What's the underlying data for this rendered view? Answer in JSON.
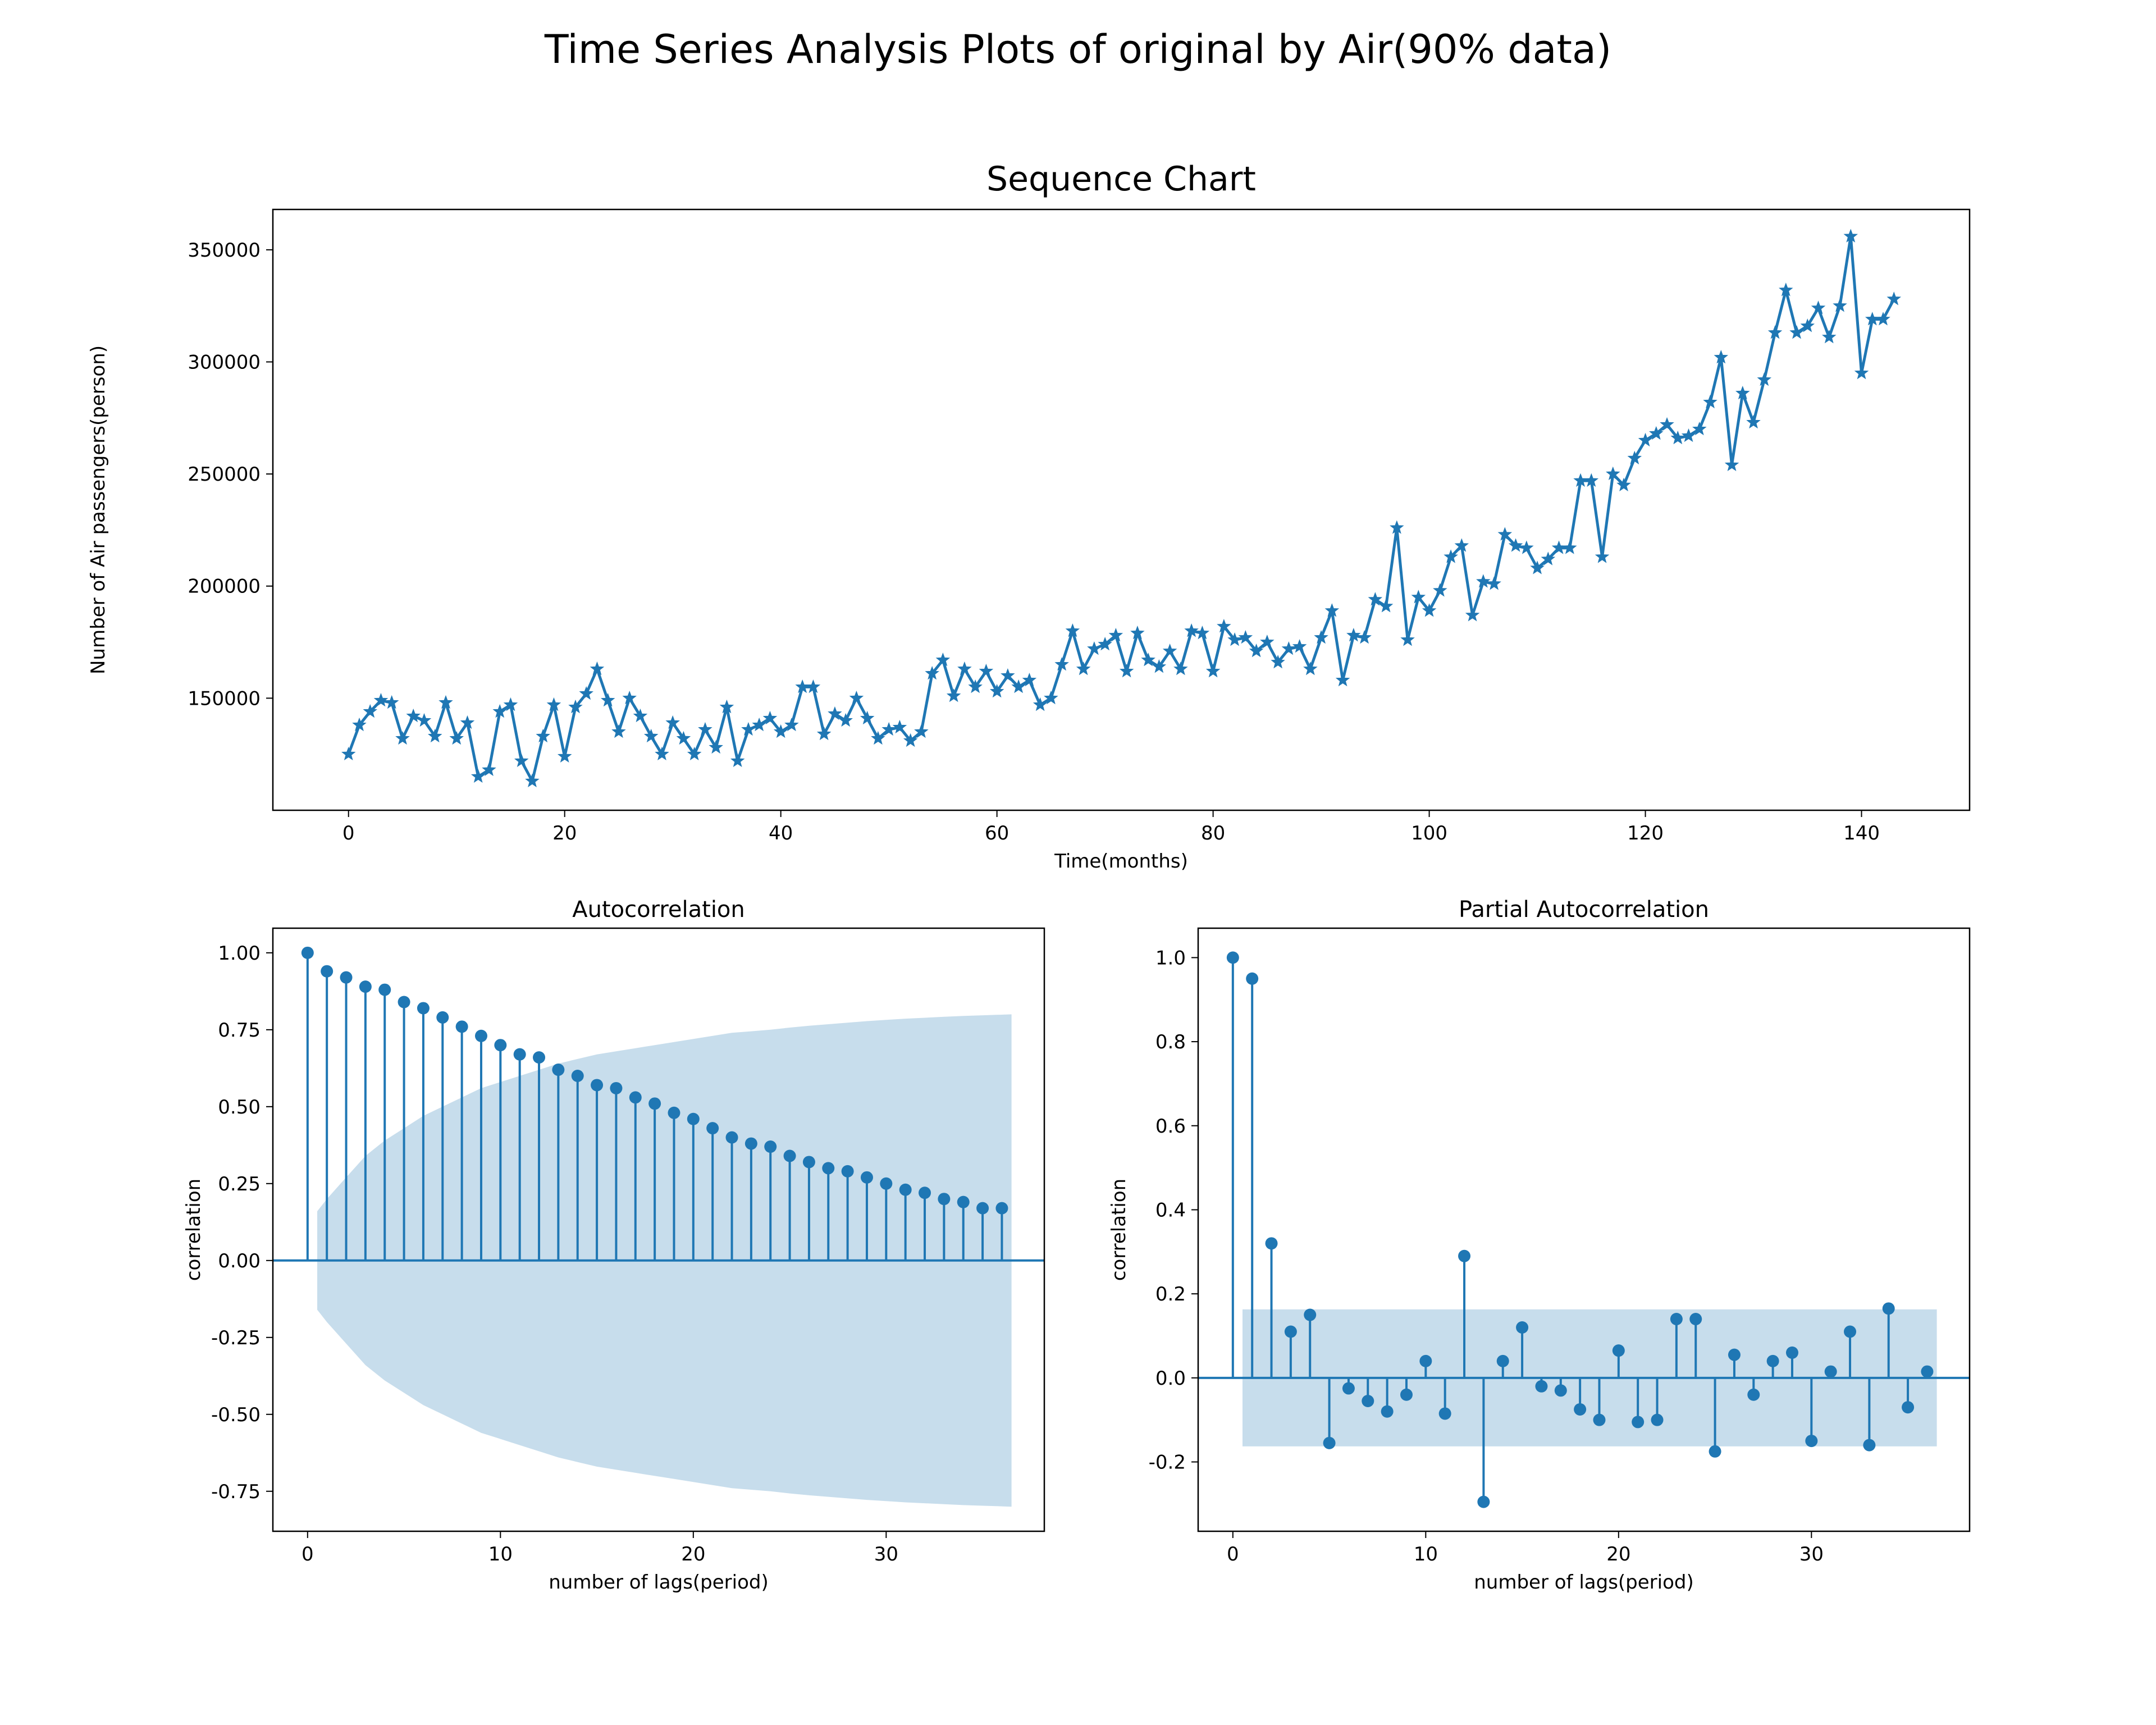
{
  "figure": {
    "suptitle": "Time Series Analysis Plots of original by Air(90% data)",
    "colors": {
      "line": "#1f77b4",
      "band": "#1f77b4",
      "axes": "#000000",
      "background": "#ffffff"
    }
  },
  "chart_data": [
    {
      "type": "line",
      "title": "Sequence Chart",
      "xlabel": "Time(months)",
      "ylabel": "Number of Air passengers(person)",
      "marker": "star",
      "xlim": [
        -7,
        150
      ],
      "ylim": [
        100000,
        368000
      ],
      "xticks": [
        0,
        20,
        40,
        60,
        80,
        100,
        120,
        140
      ],
      "yticks": [
        150000,
        200000,
        250000,
        300000,
        350000
      ],
      "x_start": 0,
      "values": [
        125000,
        138000,
        144000,
        149000,
        148000,
        132000,
        142000,
        140000,
        133000,
        148000,
        132000,
        139000,
        115000,
        118000,
        144000,
        147000,
        122000,
        113000,
        133000,
        147000,
        124000,
        146000,
        152000,
        163000,
        149000,
        135000,
        150000,
        142000,
        133000,
        125000,
        139000,
        132000,
        125000,
        136000,
        128000,
        146000,
        122000,
        136000,
        138000,
        141000,
        135000,
        138000,
        155000,
        155000,
        134000,
        143000,
        140000,
        150000,
        141000,
        132000,
        136000,
        137000,
        131000,
        135000,
        161000,
        167000,
        151000,
        163000,
        155000,
        162000,
        153000,
        160000,
        155000,
        158000,
        147000,
        150000,
        165000,
        180000,
        163000,
        172000,
        174000,
        178000,
        162000,
        179000,
        167000,
        164000,
        171000,
        163000,
        180000,
        179000,
        162000,
        182000,
        176000,
        177000,
        171000,
        175000,
        166000,
        172000,
        173000,
        163000,
        177000,
        189000,
        158000,
        178000,
        177000,
        194000,
        191000,
        226000,
        176000,
        195000,
        189000,
        198000,
        213000,
        218000,
        187000,
        202000,
        201000,
        223000,
        218000,
        217000,
        208000,
        212000,
        217000,
        217000,
        247000,
        247000,
        213000,
        250000,
        245000,
        257000,
        265000,
        268000,
        272000,
        266000,
        267000,
        270000,
        282000,
        302000,
        254000,
        286000,
        273000,
        292000,
        313000,
        332000,
        313000,
        316000,
        324000,
        311000,
        325000,
        356000,
        295000,
        319000,
        319000,
        328000
      ]
    },
    {
      "type": "stem",
      "title": "Autocorrelation",
      "xlabel": "number of lags(period)",
      "ylabel": "correlation",
      "xlim": [
        -1.8,
        38.2
      ],
      "ylim": [
        -0.88,
        1.08
      ],
      "xticks": [
        0,
        10,
        20,
        30
      ],
      "yticks": [
        -0.75,
        -0.5,
        -0.25,
        0.0,
        0.25,
        0.5,
        0.75,
        1.0
      ],
      "ytick_labels": [
        "-0.75",
        "-0.50",
        "-0.25",
        "0.00",
        "0.25",
        "0.50",
        "0.75",
        "1.00"
      ],
      "lags": [
        0,
        1,
        2,
        3,
        4,
        5,
        6,
        7,
        8,
        9,
        10,
        11,
        12,
        13,
        14,
        15,
        16,
        17,
        18,
        19,
        20,
        21,
        22,
        23,
        24,
        25,
        26,
        27,
        28,
        29,
        30,
        31,
        32,
        33,
        34,
        35,
        36
      ],
      "values": [
        1.0,
        0.94,
        0.92,
        0.89,
        0.88,
        0.84,
        0.82,
        0.79,
        0.76,
        0.73,
        0.7,
        0.67,
        0.66,
        0.62,
        0.6,
        0.57,
        0.56,
        0.53,
        0.51,
        0.48,
        0.46,
        0.43,
        0.4,
        0.38,
        0.37,
        0.34,
        0.32,
        0.3,
        0.29,
        0.27,
        0.25,
        0.23,
        0.22,
        0.2,
        0.19,
        0.17,
        0.17
      ],
      "confidence_band": {
        "lags": [
          0.5,
          1,
          2,
          3,
          4,
          5,
          6,
          7,
          8,
          9,
          10,
          11,
          12,
          13,
          14,
          15,
          16,
          17,
          18,
          19,
          20,
          21,
          22,
          23,
          24,
          25,
          26,
          27,
          28,
          29,
          30,
          31,
          32,
          33,
          34,
          35,
          36,
          36.5
        ],
        "half_width": [
          0.16,
          0.2,
          0.27,
          0.34,
          0.39,
          0.43,
          0.47,
          0.5,
          0.53,
          0.56,
          0.58,
          0.6,
          0.62,
          0.64,
          0.655,
          0.67,
          0.68,
          0.69,
          0.7,
          0.71,
          0.72,
          0.73,
          0.74,
          0.745,
          0.75,
          0.757,
          0.763,
          0.768,
          0.773,
          0.778,
          0.782,
          0.786,
          0.789,
          0.792,
          0.795,
          0.797,
          0.799,
          0.8
        ]
      }
    },
    {
      "type": "stem",
      "title": "Partial Autocorrelation",
      "xlabel": "number of lags(period)",
      "ylabel": "correlation",
      "xlim": [
        -1.8,
        38.2
      ],
      "ylim": [
        -0.365,
        1.07
      ],
      "xticks": [
        0,
        10,
        20,
        30
      ],
      "yticks": [
        -0.2,
        0.0,
        0.2,
        0.4,
        0.6,
        0.8,
        1.0
      ],
      "ytick_labels": [
        "-0.2",
        "0.0",
        "0.2",
        "0.4",
        "0.6",
        "0.8",
        "1.0"
      ],
      "lags": [
        0,
        1,
        2,
        3,
        4,
        5,
        6,
        7,
        8,
        9,
        10,
        11,
        12,
        13,
        14,
        15,
        16,
        17,
        18,
        19,
        20,
        21,
        22,
        23,
        24,
        25,
        26,
        27,
        28,
        29,
        30,
        31,
        32,
        33,
        34,
        35,
        36
      ],
      "values": [
        1.0,
        0.95,
        0.32,
        0.11,
        0.15,
        -0.155,
        -0.025,
        -0.055,
        -0.08,
        -0.04,
        0.04,
        -0.085,
        0.29,
        -0.295,
        0.04,
        0.12,
        -0.02,
        -0.03,
        -0.075,
        -0.1,
        0.065,
        -0.105,
        -0.1,
        0.14,
        0.14,
        -0.175,
        0.055,
        -0.04,
        0.04,
        0.06,
        -0.15,
        0.015,
        0.11,
        -0.16,
        0.165,
        -0.07,
        0.015
      ],
      "confidence_band": {
        "from": 0.5,
        "to": 36.5,
        "half_width": 0.163
      }
    }
  ]
}
